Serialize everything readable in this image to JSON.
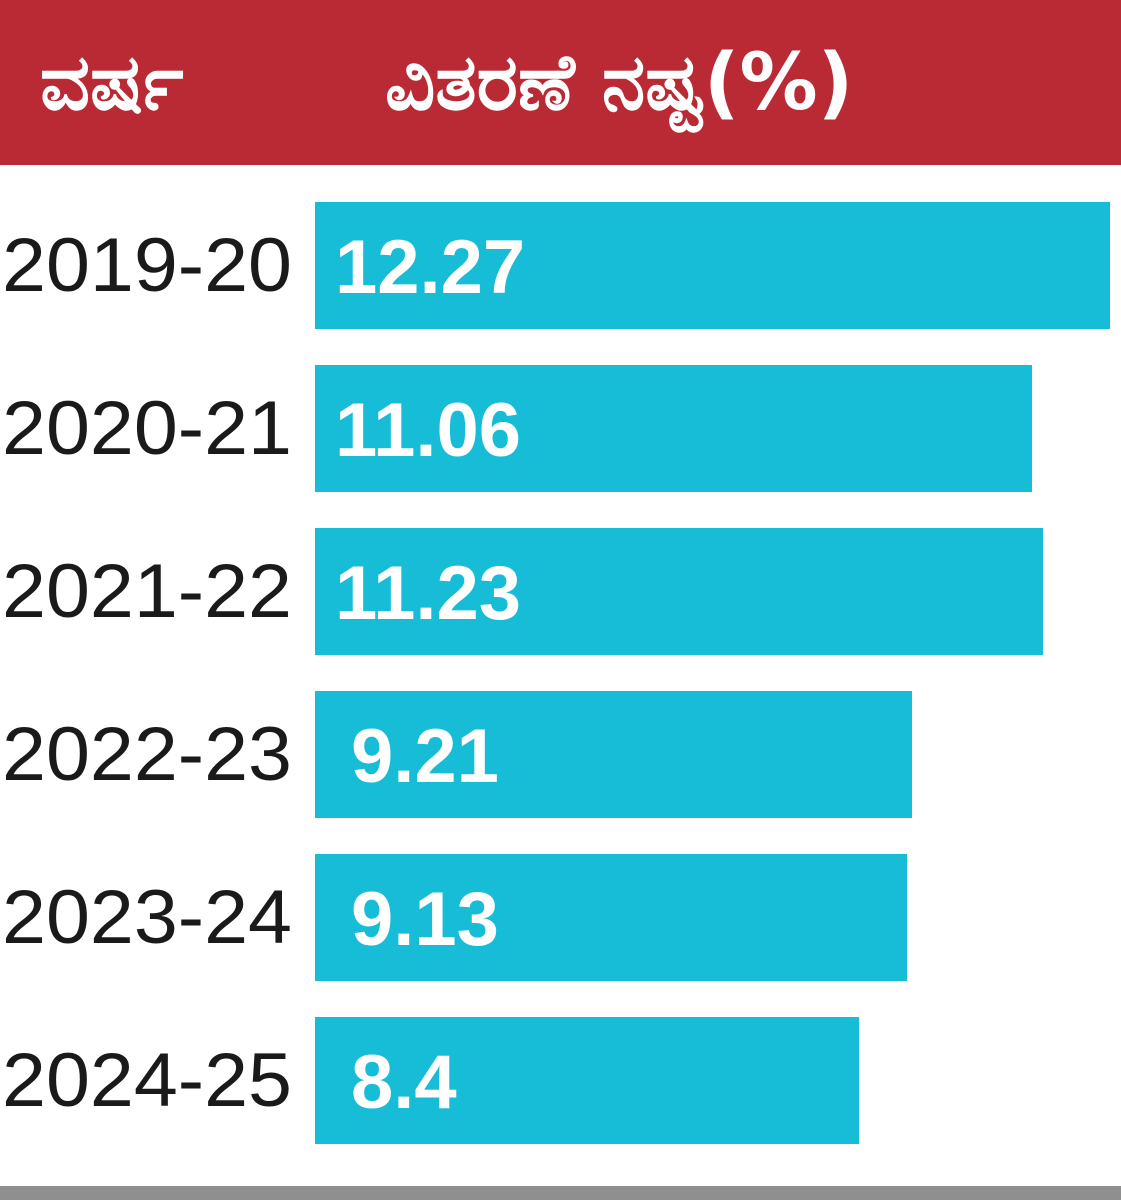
{
  "header": {
    "year_label": "ವರ್ಷ",
    "value_label": "ವಿತರಣೆ ನಷ್ಟ(%)"
  },
  "colors": {
    "header_bg": "#ba2a35",
    "bar": "#17bdd7",
    "category_text": "#1a1a1a",
    "value_text": "#ffffff",
    "bottom_rule": "#8f8f8f"
  },
  "chart_data": {
    "type": "bar",
    "orientation": "horizontal",
    "categories": [
      "2019-20",
      "2020-21",
      "2021-22",
      "2022-23",
      "2023-24",
      "2024-25"
    ],
    "values": [
      12.27,
      11.06,
      11.23,
      9.21,
      9.13,
      8.4
    ],
    "value_labels": [
      "12.27",
      "11.06",
      "11.23",
      "9.21",
      "9.13",
      "8.4"
    ],
    "title": "",
    "xlabel": "ವಿತರಣೆ ನಷ್ಟ(%)",
    "ylabel": "ವರ್ಷ",
    "xlim": [
      0,
      12.27
    ],
    "grid": false,
    "legend": "none"
  }
}
